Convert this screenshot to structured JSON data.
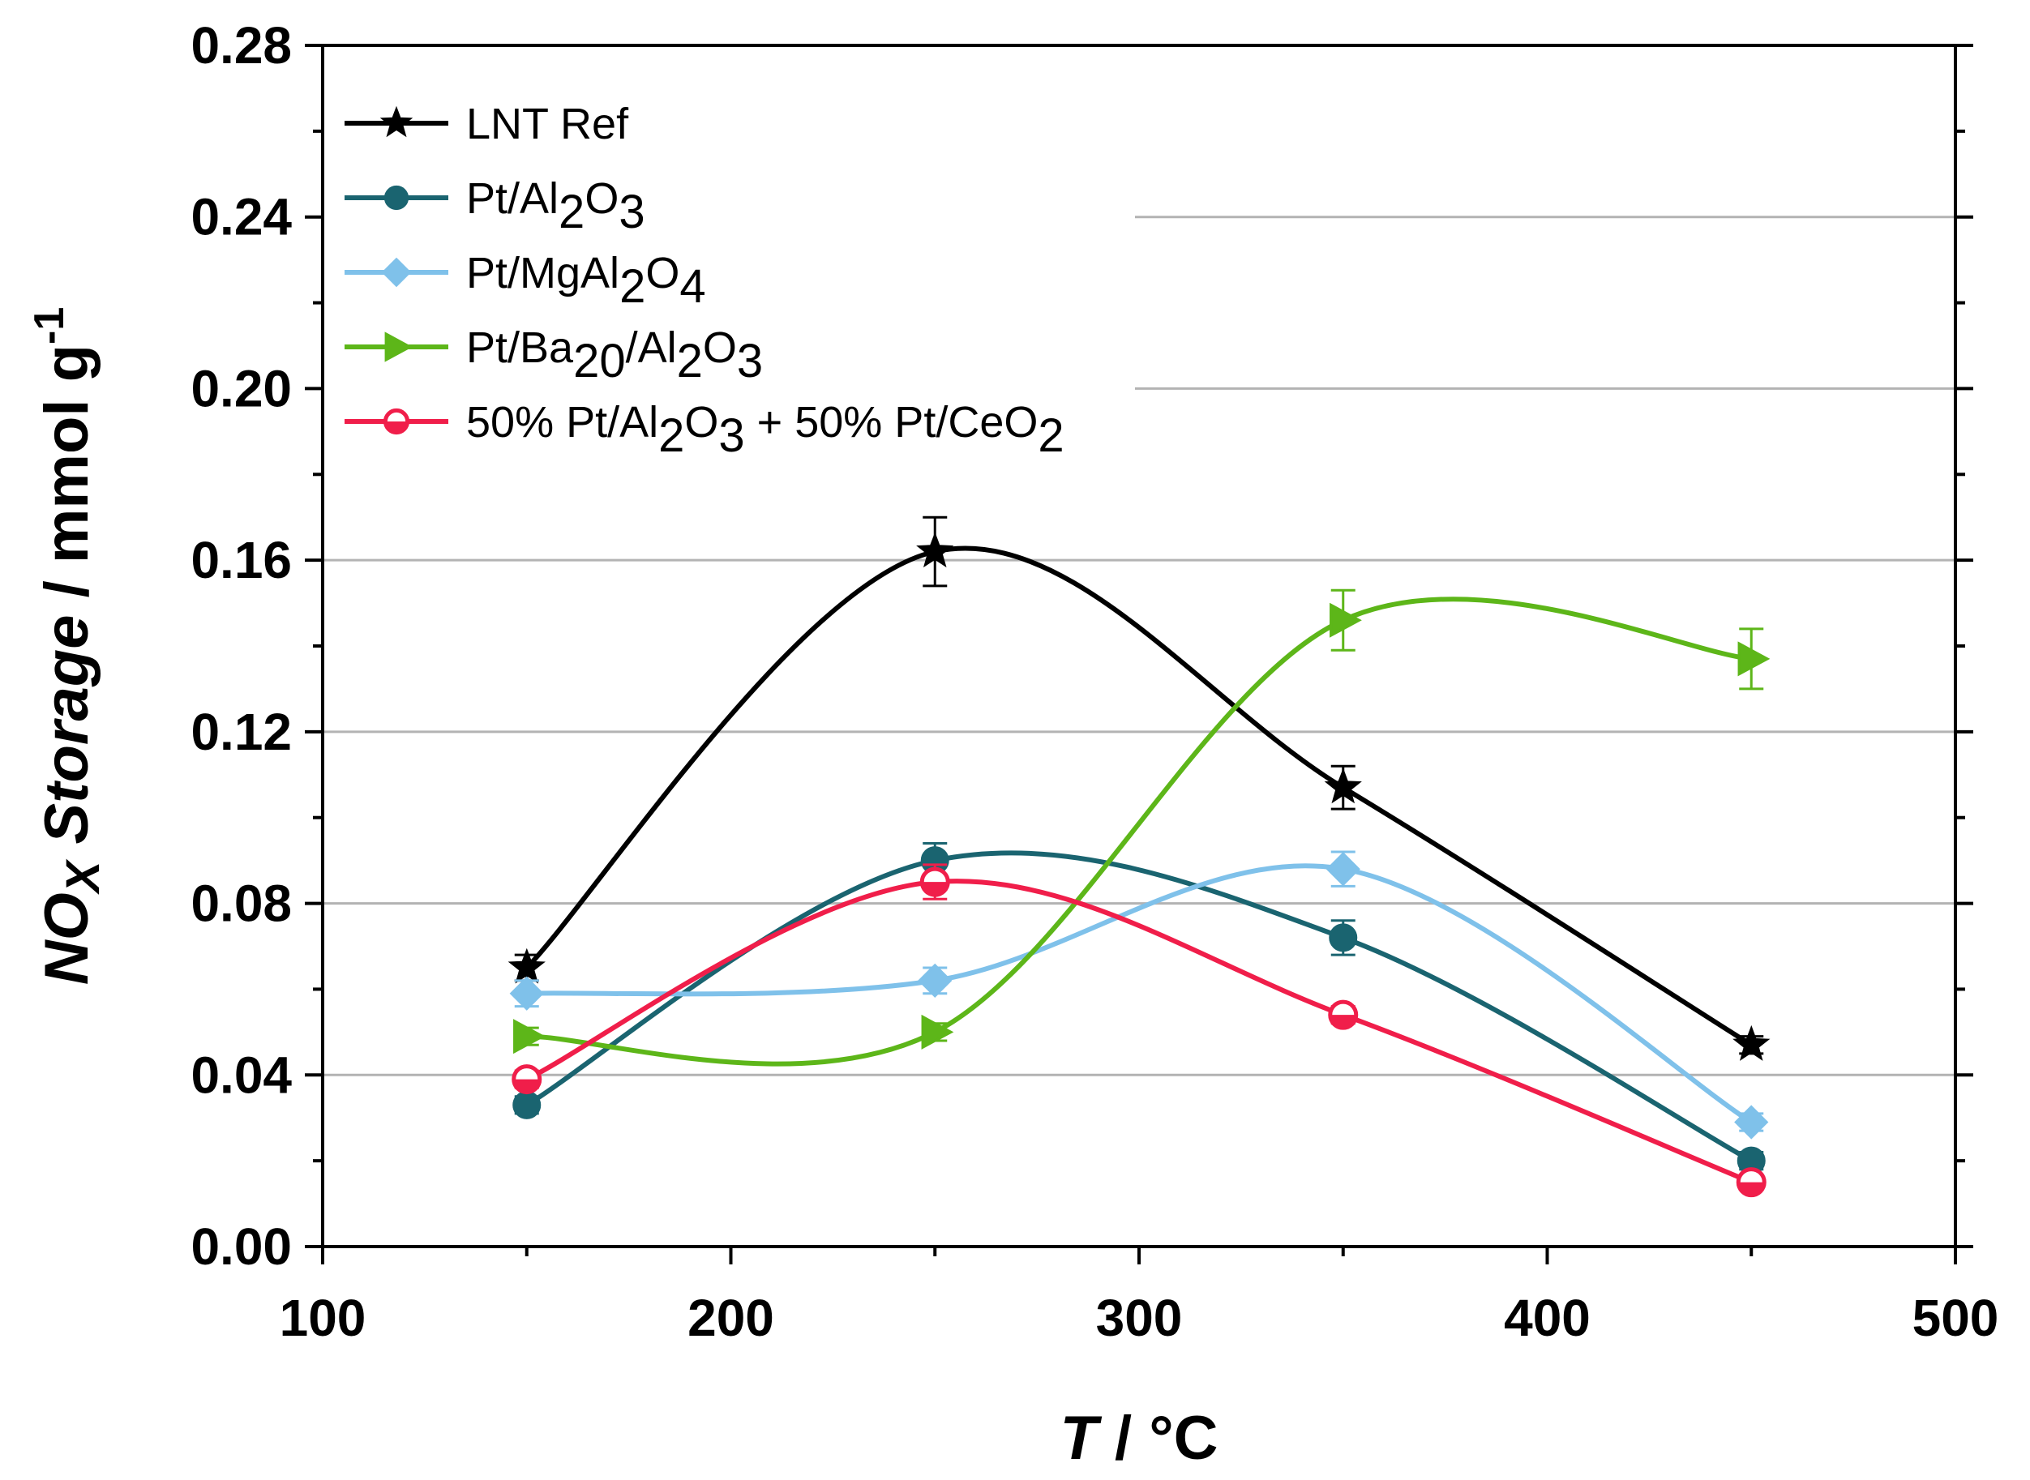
{
  "chart_data": {
    "type": "line",
    "xlabel": {
      "italic": "T",
      "rest": " / °C"
    },
    "ylabel": {
      "italic": "NO",
      "sub": "X",
      "italic2": " Storage",
      "rest": " / mmol g",
      "sup": "-1"
    },
    "xlim": [
      100,
      500
    ],
    "ylim": [
      0,
      0.28
    ],
    "xticks": [
      "100",
      "200",
      "300",
      "400",
      "500"
    ],
    "yticks": [
      "0.00",
      "0.04",
      "0.08",
      "0.12",
      "0.16",
      "0.20",
      "0.24",
      "0.28"
    ],
    "x": [
      150,
      250,
      350,
      450
    ],
    "series": [
      {
        "name": "LNT Ref",
        "legend_parts": [
          [
            "n",
            "LNT Ref"
          ]
        ],
        "color": "#000000",
        "marker": "star",
        "values": [
          0.065,
          0.162,
          0.107,
          0.047
        ],
        "errors": [
          0.003,
          0.008,
          0.005,
          0.002
        ]
      },
      {
        "name": "Pt/Al2O3",
        "legend_parts": [
          [
            "n",
            "Pt/Al"
          ],
          [
            "s",
            "2"
          ],
          [
            "n",
            "O"
          ],
          [
            "s",
            "3"
          ]
        ],
        "color": "#1a6470",
        "marker": "circle",
        "values": [
          0.033,
          0.09,
          0.072,
          0.02
        ],
        "errors": [
          0.002,
          0.004,
          0.004,
          0.002
        ]
      },
      {
        "name": "Pt/MgAl2O4",
        "legend_parts": [
          [
            "n",
            "Pt/MgAl"
          ],
          [
            "s",
            "2"
          ],
          [
            "n",
            "O"
          ],
          [
            "s",
            "4"
          ]
        ],
        "color": "#7fc1ea",
        "marker": "diamond",
        "values": [
          0.059,
          0.062,
          0.088,
          0.029
        ],
        "errors": [
          0.003,
          0.003,
          0.004,
          0.002
        ]
      },
      {
        "name": "Pt/Ba20/Al2O3",
        "legend_parts": [
          [
            "n",
            "Pt/Ba"
          ],
          [
            "s",
            "20"
          ],
          [
            "n",
            "/Al"
          ],
          [
            "s",
            "2"
          ],
          [
            "n",
            "O"
          ],
          [
            "s",
            "3"
          ]
        ],
        "color": "#5db619",
        "marker": "triangle-right",
        "values": [
          0.049,
          0.05,
          0.146,
          0.137
        ],
        "errors": [
          0.002,
          0.002,
          0.007,
          0.007
        ]
      },
      {
        "name": "50% Pt/Al2O3 + 50% Pt/CeO2",
        "legend_parts": [
          [
            "n",
            "50% Pt/Al"
          ],
          [
            "s",
            "2"
          ],
          [
            "n",
            "O"
          ],
          [
            "s",
            "3"
          ],
          [
            "n",
            " + 50% Pt/CeO"
          ],
          [
            "s",
            "2"
          ]
        ],
        "color": "#f01e4a",
        "marker": "half-circle",
        "values": [
          0.039,
          0.085,
          0.054,
          0.015
        ],
        "errors": [
          0.002,
          0.004,
          0.002,
          0.001
        ]
      }
    ],
    "grid": "horizontal",
    "legend": "top-left"
  }
}
